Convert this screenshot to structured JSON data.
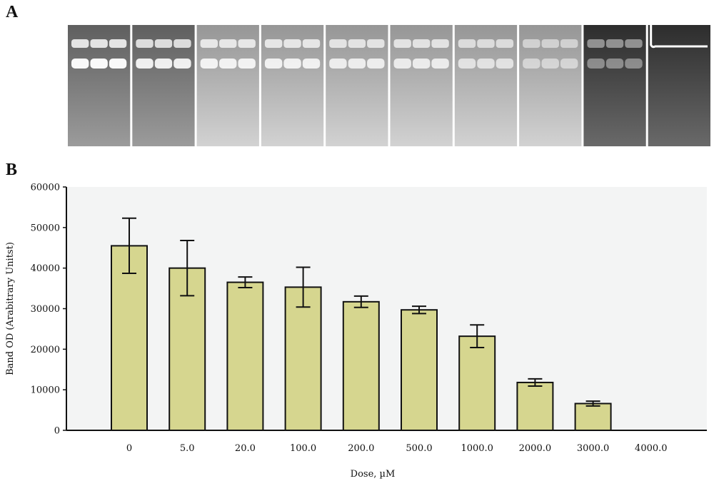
{
  "panels": {
    "a_label": "A",
    "b_label": "B"
  },
  "gel_lanes": [
    {
      "lane": 1,
      "band_intensity": 0.95
    },
    {
      "lane": 2,
      "band_intensity": 0.85
    },
    {
      "lane": 3,
      "band_intensity": 0.8
    },
    {
      "lane": 4,
      "band_intensity": 0.78
    },
    {
      "lane": 5,
      "band_intensity": 0.72
    },
    {
      "lane": 6,
      "band_intensity": 0.7
    },
    {
      "lane": 7,
      "band_intensity": 0.55
    },
    {
      "lane": 8,
      "band_intensity": 0.35
    },
    {
      "lane": 9,
      "band_intensity": 0.2
    },
    {
      "lane": 10,
      "band_intensity": 0.0
    }
  ],
  "chart_data": {
    "type": "bar",
    "xlabel": "Dose, µM",
    "ylabel": "Band OD (Arabitrary Unitst)",
    "ylim": [
      0,
      60000
    ],
    "yticks": [
      0,
      10000,
      20000,
      30000,
      40000,
      50000,
      60000
    ],
    "categories": [
      "0",
      "5.0",
      "20.0",
      "100.0",
      "200.0",
      "500.0",
      "1000.0",
      "2000.0",
      "3000.0",
      "4000.0"
    ],
    "values": [
      45500,
      40000,
      36500,
      35300,
      31700,
      29700,
      23200,
      11800,
      6600,
      0
    ],
    "errors": [
      6800,
      6800,
      1300,
      4900,
      1400,
      900,
      2800,
      900,
      600,
      0
    ],
    "bar_color": "#d6d68f",
    "plot_background": "#f3f4f4",
    "grid": false,
    "legend": "none"
  }
}
